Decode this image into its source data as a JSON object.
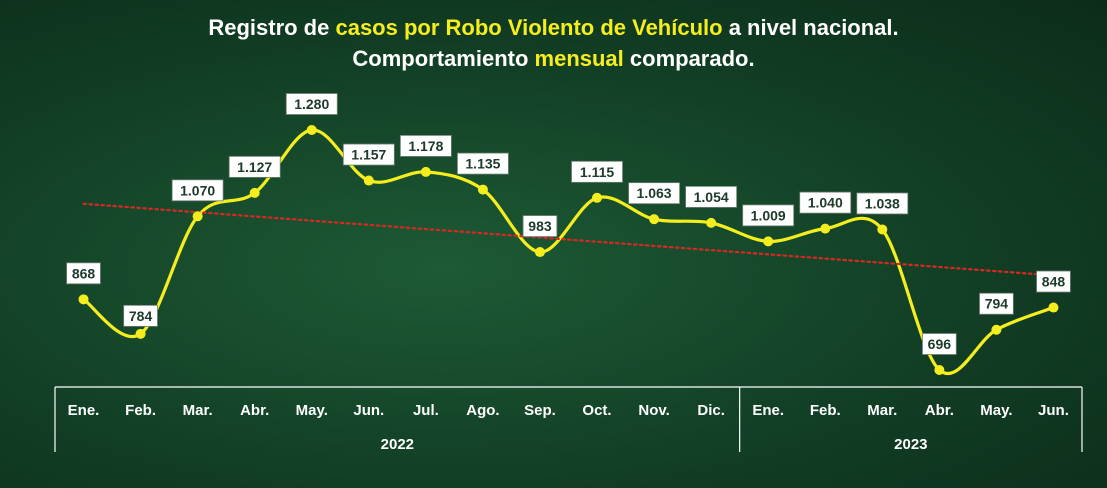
{
  "title": {
    "line1": [
      {
        "text": "Registro de ",
        "hl": false
      },
      {
        "text": "casos por Robo Violento de Vehículo",
        "hl": true
      },
      {
        "text": " a nivel nacional.",
        "hl": false
      }
    ],
    "line2": [
      {
        "text": "Comportamiento ",
        "hl": false
      },
      {
        "text": "mensual",
        "hl": true
      },
      {
        "text": " comparado.",
        "hl": false
      }
    ]
  },
  "colors": {
    "background": "#123f25",
    "highlight": "#f5ee1f",
    "line": "#f5ee1f",
    "trend": "#d42a24",
    "axis": "#ffffff"
  },
  "chart_data": {
    "type": "line",
    "categories": [
      "Ene.",
      "Feb.",
      "Mar.",
      "Abr.",
      "May.",
      "Jun.",
      "Jul.",
      "Ago.",
      "Sep.",
      "Oct.",
      "Nov.",
      "Dic.",
      "Ene.",
      "Feb.",
      "Mar.",
      "Abr.",
      "May.",
      "Jun."
    ],
    "years": [
      {
        "label": "2022",
        "months": 12
      },
      {
        "label": "2023",
        "months": 6
      }
    ],
    "series": [
      {
        "values": [
          868,
          784,
          1070,
          1127,
          1280,
          1157,
          1178,
          1135,
          983,
          1115,
          1063,
          1054,
          1009,
          1040,
          1038,
          696,
          794,
          848
        ],
        "data_labels": [
          "868",
          "784",
          "1.070",
          "1.127",
          "1.280",
          "1.157",
          "1.178",
          "1.135",
          "983",
          "1.115",
          "1.063",
          "1.054",
          "1.009",
          "1.040",
          "1.038",
          "696",
          "794",
          "848"
        ]
      }
    ],
    "trendline": {
      "style": "dotted",
      "type": "linear"
    },
    "ylim": [
      650,
      1330
    ],
    "grid": false,
    "legend": "none",
    "xlabel": "",
    "ylabel": ""
  }
}
